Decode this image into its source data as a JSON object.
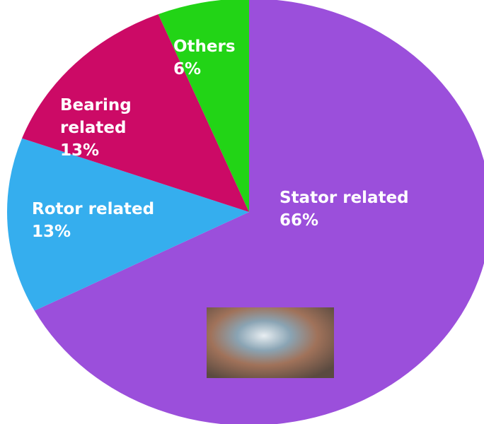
{
  "chart_data": {
    "type": "pie",
    "categories": [
      "Stator related",
      "Rotor related",
      "Bearing related",
      "Others"
    ],
    "values": [
      66,
      13,
      13,
      6
    ],
    "value_labels": [
      "66%",
      "13%",
      "13%",
      "6%"
    ],
    "colors": [
      "#9b4fdb",
      "#35aeee",
      "#cc0a66",
      "#22d416"
    ]
  }
}
